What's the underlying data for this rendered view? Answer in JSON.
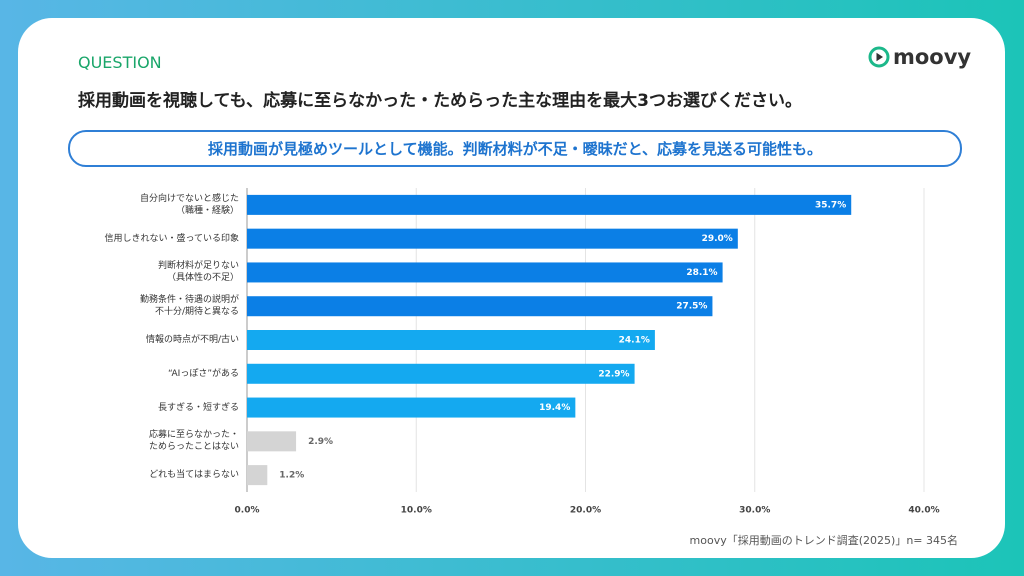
{
  "header": {
    "label": "QUESTION",
    "question": "採用動画を視聴しても、応募に至らなかった・ためらった主な理由を最大3つお選びください。",
    "highlight": "採用動画が見極めツールとして機能。判断材料が不足・曖昧だと、応募を見送る可能性も。",
    "logo": "moovy"
  },
  "chart_data": {
    "type": "bar",
    "orientation": "horizontal",
    "categories": [
      "自分向けでないと感じた\n（職種・経験）",
      "信用しきれない・盛っている印象",
      "判断材料が足りない\n（具体性の不足）",
      "勤務条件・待遇の説明が\n不十分/期待と異なる",
      "情報の時点が不明/古い",
      "“AIっぽさ”がある",
      "長すぎる・短すぎる",
      "応募に至らなかった・\nためらったことはない",
      "どれも当てはまらない"
    ],
    "values": [
      35.7,
      29.0,
      28.1,
      27.5,
      24.1,
      22.9,
      19.4,
      2.9,
      1.2
    ],
    "value_labels": [
      "35.7%",
      "29.0%",
      "28.1%",
      "27.5%",
      "24.1%",
      "22.9%",
      "19.4%",
      "2.9%",
      "1.2%"
    ],
    "colors": [
      "#0b7fe6",
      "#0b7fe6",
      "#0b7fe6",
      "#0b7fe6",
      "#14a9f0",
      "#14a9f0",
      "#14a9f0",
      "#d4d4d4",
      "#d4d4d4"
    ],
    "value_label_position": [
      "inside",
      "inside",
      "inside",
      "inside",
      "inside",
      "inside",
      "inside",
      "outside",
      "outside"
    ],
    "xlim": [
      0,
      40
    ],
    "xticks": [
      {
        "value": 0,
        "label": "0.0%"
      },
      {
        "value": 10,
        "label": "10.0%"
      },
      {
        "value": 20,
        "label": "20.0%"
      },
      {
        "value": 30,
        "label": "30.0%"
      },
      {
        "value": 40,
        "label": "40.0%"
      }
    ],
    "grid": true
  },
  "source": "moovy「採用動画のトレンド調査(2025)」n= 345名"
}
